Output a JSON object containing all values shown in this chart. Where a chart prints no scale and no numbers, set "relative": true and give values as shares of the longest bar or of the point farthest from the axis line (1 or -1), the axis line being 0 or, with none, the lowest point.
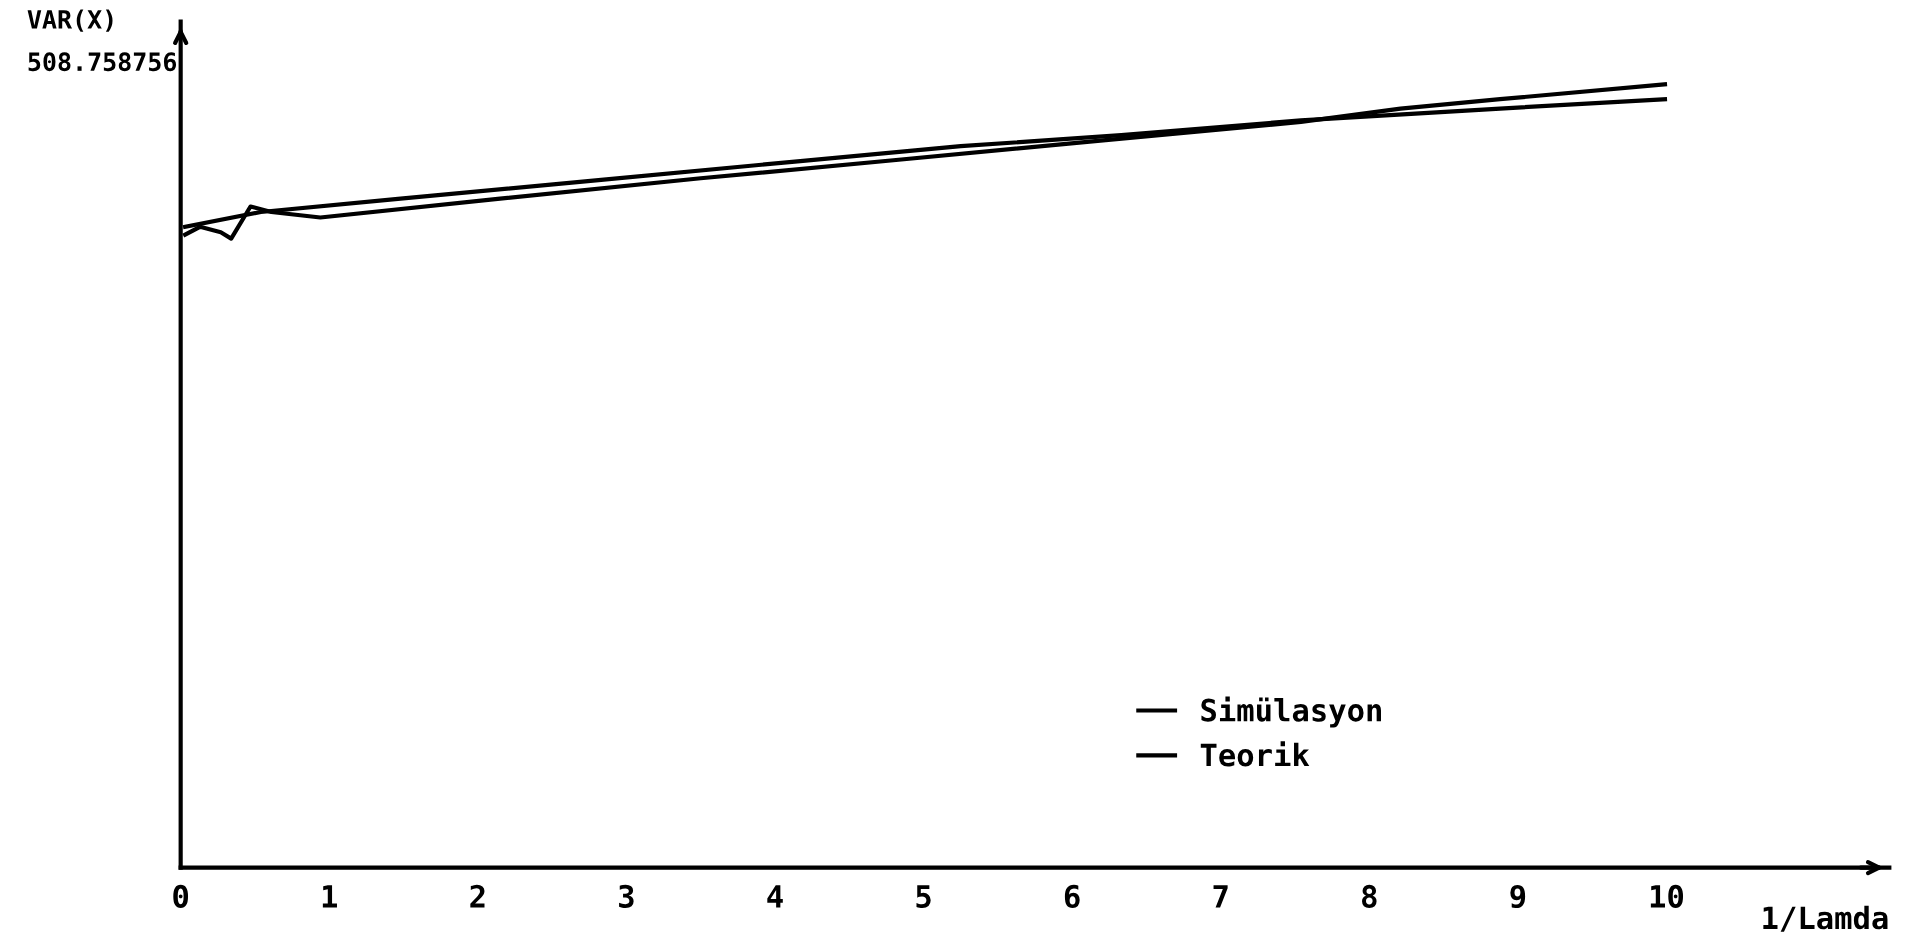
{
  "chart_data": {
    "type": "line",
    "relative": true,
    "ylabel": "VAR(X)",
    "xlabel": "1/Lamda",
    "annotations": [
      "508.758756"
    ],
    "xlim": [
      0,
      11.5
    ],
    "xticks": [
      0,
      1,
      2,
      3,
      4,
      5,
      6,
      7,
      8,
      9,
      10
    ],
    "legend": "bottom right",
    "grid": false,
    "marker": "none",
    "line_style": "solid",
    "series": [
      {
        "name": "Simülasyon",
        "color": "#000000",
        "x": [
          0.03,
          0.13,
          0.27,
          0.34,
          0.47,
          0.61,
          0.94,
          2.15,
          3.5,
          4.85,
          6.19,
          7.54,
          8.21,
          8.88,
          9.99
        ],
        "values": [
          0.808,
          0.818,
          0.811,
          0.803,
          0.844,
          0.837,
          0.83,
          0.854,
          0.88,
          0.904,
          0.928,
          0.952,
          0.969,
          0.981,
          1.0
        ]
      },
      {
        "name": "Teorik",
        "color": "#000000",
        "x": [
          0.03,
          0.54,
          1.48,
          2.83,
          4.17,
          5.25,
          6.33,
          7.54,
          8.88,
          9.99
        ],
        "values": [
          0.818,
          0.837,
          0.854,
          0.878,
          0.902,
          0.921,
          0.935,
          0.954,
          0.969,
          0.981
        ]
      }
    ]
  }
}
